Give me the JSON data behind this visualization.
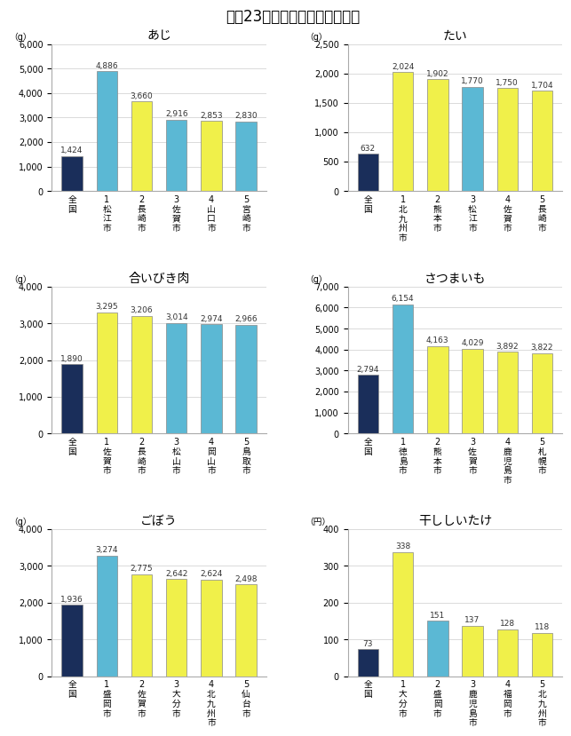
{
  "charts": [
    {
      "title": "あじ",
      "unit": "（g）",
      "ylim": [
        0,
        6000
      ],
      "yticks": [
        0,
        1000,
        2000,
        3000,
        4000,
        5000,
        6000
      ],
      "categories": [
        "全\n国",
        "1\n松\n江\n市",
        "2\n長\n崎\n市",
        "3\n佐\n賀\n市",
        "4\n山\n口\n市",
        "5\n宮\n崎\n市"
      ],
      "values": [
        1424,
        4886,
        3660,
        2916,
        2853,
        2830
      ],
      "colors": [
        "#1a2e5a",
        "#5bb8d4",
        "#f0f04a",
        "#5bb8d4",
        "#f0f04a",
        "#5bb8d4"
      ],
      "value_labels": [
        "1,424",
        "4,886",
        "3,660",
        "2,916",
        "2,853",
        "2,830"
      ]
    },
    {
      "title": "たい",
      "unit": "（g）",
      "ylim": [
        0,
        2500
      ],
      "yticks": [
        0,
        500,
        1000,
        1500,
        2000,
        2500
      ],
      "categories": [
        "全\n国",
        "1\n北\n九\n州\n市",
        "2\n熊\n本\n市",
        "3\n松\n江\n市",
        "4\n佐\n賀\n市",
        "5\n長\n崎\n市"
      ],
      "values": [
        632,
        2024,
        1902,
        1770,
        1750,
        1704
      ],
      "colors": [
        "#1a2e5a",
        "#f0f04a",
        "#f0f04a",
        "#5bb8d4",
        "#f0f04a",
        "#f0f04a"
      ],
      "value_labels": [
        "632",
        "2,024",
        "1,902",
        "1,770",
        "1,750",
        "1,704"
      ]
    },
    {
      "title": "合いびき肉",
      "unit": "（g）",
      "ylim": [
        0,
        4000
      ],
      "yticks": [
        0,
        1000,
        2000,
        3000,
        4000
      ],
      "categories": [
        "全\n国",
        "1\n佐\n賀\n市",
        "2\n長\n崎\n市",
        "3\n松\n山\n市",
        "4\n岡\n山\n市",
        "5\n鳥\n取\n市"
      ],
      "values": [
        1890,
        3295,
        3206,
        3014,
        2974,
        2966
      ],
      "colors": [
        "#1a2e5a",
        "#f0f04a",
        "#f0f04a",
        "#5bb8d4",
        "#5bb8d4",
        "#5bb8d4"
      ],
      "value_labels": [
        "1,890",
        "3,295",
        "3,206",
        "3,014",
        "2,974",
        "2,966"
      ]
    },
    {
      "title": "さつまいも",
      "unit": "（g）",
      "ylim": [
        0,
        7000
      ],
      "yticks": [
        0,
        1000,
        2000,
        3000,
        4000,
        5000,
        6000,
        7000
      ],
      "categories": [
        "全\n国",
        "1\n徳\n島\n市",
        "2\n熊\n本\n市",
        "3\n佐\n賀\n市",
        "4\n鹿\n児\n島\n市",
        "5\n札\n幌\n市"
      ],
      "values": [
        2794,
        6154,
        4163,
        4029,
        3892,
        3822
      ],
      "colors": [
        "#1a2e5a",
        "#5bb8d4",
        "#f0f04a",
        "#f0f04a",
        "#f0f04a",
        "#f0f04a"
      ],
      "value_labels": [
        "2,794",
        "6,154",
        "4,163",
        "4,029",
        "3,892",
        "3,822"
      ]
    },
    {
      "title": "ごぼう",
      "unit": "（g）",
      "ylim": [
        0,
        4000
      ],
      "yticks": [
        0,
        1000,
        2000,
        3000,
        4000
      ],
      "categories": [
        "全\n国",
        "1\n盛\n岡\n市",
        "2\n佐\n賀\n市",
        "3\n大\n分\n市",
        "4\n北\n九\n州\n市",
        "5\n仙\n台\n市"
      ],
      "values": [
        1936,
        3274,
        2775,
        2642,
        2624,
        2498
      ],
      "colors": [
        "#1a2e5a",
        "#5bb8d4",
        "#f0f04a",
        "#f0f04a",
        "#f0f04a",
        "#f0f04a"
      ],
      "value_labels": [
        "1,936",
        "3,274",
        "2,775",
        "2,642",
        "2,624",
        "2,498"
      ]
    },
    {
      "title": "干ししいたけ",
      "unit": "（円）",
      "ylim": [
        0,
        400
      ],
      "yticks": [
        0,
        100,
        200,
        300,
        400
      ],
      "categories": [
        "全\n国",
        "1\n大\n分\n市",
        "2\n盛\n岡\n市",
        "3\n鹿\n児\n島\n市",
        "4\n福\n岡\n市",
        "5\n北\n九\n州\n市"
      ],
      "values": [
        73,
        338,
        151,
        137,
        128,
        118
      ],
      "colors": [
        "#1a2e5a",
        "#f0f04a",
        "#5bb8d4",
        "#f0f04a",
        "#f0f04a",
        "#f0f04a"
      ],
      "value_labels": [
        "73",
        "338",
        "151",
        "137",
        "128",
        "118"
      ]
    }
  ],
  "main_title": "平成23年九州ランキンググラフ",
  "background_color": "#ffffff",
  "bar_edge_color": "#888888",
  "grid_color": "#cccccc",
  "text_color": "#333333",
  "label_fontsize": 7,
  "title_fontsize": 10,
  "value_fontsize": 6.5,
  "unit_fontsize": 7,
  "tick_fontsize": 7,
  "main_title_fontsize": 12
}
